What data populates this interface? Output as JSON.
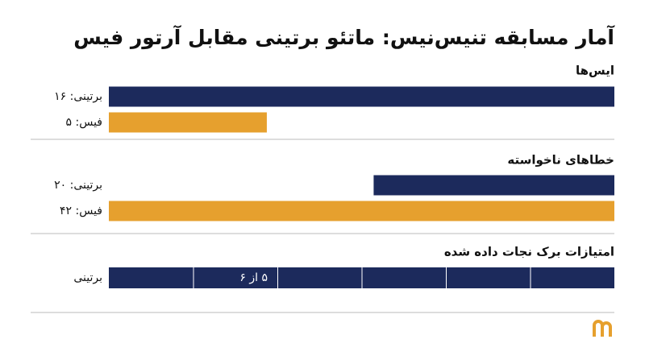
{
  "title": "آمار مسابقه تنیس‌نیس: ماتئو برتینی مقابل آرتور فیس",
  "groups": [
    {
      "heading": "ایس‌ها",
      "anchor": "left",
      "rows": [
        {
          "label": "برتینی: ۱۶",
          "value": 16,
          "color": "#1c2a5c"
        },
        {
          "label": "فیس: ۵",
          "value": 5,
          "color": "#e6a02e"
        }
      ]
    },
    {
      "heading": "خطاهای ناخواسته",
      "anchor": "right",
      "rows": [
        {
          "label": "برتینی: ۲۰",
          "value": 20,
          "color": "#1c2a5c"
        },
        {
          "label": "فیس: ۴۲",
          "value": 42,
          "color": "#e6a02e"
        }
      ]
    }
  ],
  "break_points": {
    "heading": "امتیازات برک نجات داده شده",
    "label": "برتینی",
    "saved": 5,
    "total": 6,
    "value_label": "۵ از ۶",
    "color": "#1c2a5c"
  }
}
